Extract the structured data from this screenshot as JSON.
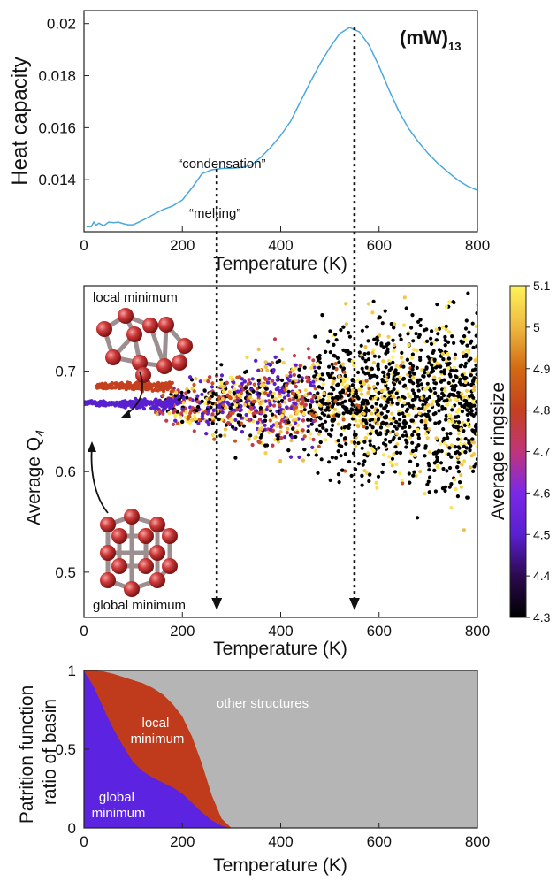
{
  "figure_label": "(mW)",
  "figure_label_sub": "13",
  "chart_data": [
    {
      "type": "line",
      "xlabel": "Temperature (K)",
      "ylabel": "Heat capacity",
      "xlim": [
        0,
        800
      ],
      "ylim": [
        0.012,
        0.0205
      ],
      "xticks": [
        0,
        200,
        400,
        600,
        800
      ],
      "yticks": [
        0.014,
        0.016,
        0.018,
        0.02
      ],
      "ytick_labels": [
        "0.014",
        "0.016",
        "0.018",
        "0.02"
      ],
      "line_color": "#4aa8e0",
      "series": [
        {
          "x": [
            5,
            15,
            20,
            25,
            30,
            40,
            50,
            60,
            70,
            80,
            90,
            100,
            120,
            140,
            160,
            180,
            200,
            220,
            240,
            260,
            280,
            300,
            320,
            340,
            360,
            380,
            400,
            420,
            440,
            460,
            480,
            500,
            520,
            540,
            560,
            580,
            600,
            620,
            640,
            660,
            680,
            700,
            720,
            740,
            760,
            780,
            800
          ],
          "y": [
            0.01219,
            0.0122,
            0.01237,
            0.01225,
            0.01233,
            0.01223,
            0.01237,
            0.01235,
            0.01237,
            0.01231,
            0.01227,
            0.01227,
            0.01245,
            0.01265,
            0.01285,
            0.01299,
            0.01322,
            0.0137,
            0.01423,
            0.01438,
            0.01443,
            0.01444,
            0.01447,
            0.01456,
            0.01487,
            0.01525,
            0.0157,
            0.01624,
            0.017,
            0.01775,
            0.01845,
            0.01908,
            0.01962,
            0.01985,
            0.01968,
            0.01916,
            0.01835,
            0.01746,
            0.01664,
            0.01597,
            0.01545,
            0.015,
            0.01462,
            0.01429,
            0.01399,
            0.01375,
            0.01359
          ]
        }
      ],
      "annotations": [
        {
          "text": "“melting”",
          "x": 270
        },
        {
          "text": "“condensation”",
          "x": 550
        }
      ]
    },
    {
      "type": "scatter",
      "xlabel": "Temperature (K)",
      "ylabel": "Average Q",
      "ylabel_sub": "4",
      "xlim": [
        0,
        800
      ],
      "ylim": [
        0.455,
        0.785
      ],
      "xticks": [
        0,
        200,
        400,
        600,
        800
      ],
      "yticks": [
        0.5,
        0.6,
        0.7
      ],
      "ytick_labels": [
        "0.5",
        "0.6",
        "0.7"
      ],
      "colorbar": {
        "label": "Average ringsize",
        "range": [
          4.3,
          5.1
        ],
        "ticks": [
          "4.3",
          "4.4",
          "4.5",
          "4.6",
          "4.7",
          "4.8",
          "4.9",
          "5",
          "5.1"
        ],
        "colors": [
          "#000000",
          "#2b0a4f",
          "#5a1fd0",
          "#7a28e8",
          "#c0357a",
          "#c5401e",
          "#d26a12",
          "#eeb840",
          "#fff35a"
        ]
      },
      "clusters": [
        {
          "name": "local minimum",
          "q4": 0.685,
          "ringsize": 4.8,
          "T_range": [
            25,
            180
          ]
        },
        {
          "name": "global minimum",
          "q4": 0.668,
          "ringsize": 4.5,
          "T_range": [
            0,
            180
          ]
        }
      ],
      "vertical_markers_K": [
        270,
        550
      ],
      "annotations": [
        {
          "text": "local minimum"
        },
        {
          "text": "global minimum"
        }
      ]
    },
    {
      "type": "area",
      "xlabel": "Temperature (K)",
      "ylabel_line1": "Patrition function",
      "ylabel_line2": "ratio of basin",
      "xlim": [
        0,
        800
      ],
      "ylim": [
        0,
        1
      ],
      "xticks": [
        0,
        200,
        400,
        600,
        800
      ],
      "yticks": [
        0,
        0.5,
        1
      ],
      "ytick_labels": [
        "0",
        "0.5",
        "1"
      ],
      "x": [
        0,
        20,
        40,
        60,
        80,
        100,
        120,
        140,
        160,
        180,
        200,
        220,
        240,
        260,
        280,
        300,
        800
      ],
      "series": [
        {
          "name": "global minimum",
          "color": "#5c23e0",
          "values": [
            1.0,
            0.9,
            0.76,
            0.63,
            0.52,
            0.42,
            0.36,
            0.32,
            0.29,
            0.26,
            0.22,
            0.16,
            0.1,
            0.05,
            0.015,
            0.0,
            0.0
          ]
        },
        {
          "name": "local minimum",
          "color": "#bf3b1c",
          "values": [
            0.0,
            0.1,
            0.235,
            0.35,
            0.44,
            0.52,
            0.56,
            0.57,
            0.56,
            0.53,
            0.49,
            0.42,
            0.31,
            0.16,
            0.045,
            0.0,
            0.0
          ]
        },
        {
          "name": "other structures",
          "color": "#b5b5b5",
          "values": [
            0.0,
            0.0,
            0.005,
            0.02,
            0.04,
            0.06,
            0.08,
            0.11,
            0.15,
            0.21,
            0.29,
            0.42,
            0.59,
            0.79,
            0.94,
            1.0,
            1.0
          ]
        }
      ],
      "area_labels": [
        {
          "lines": [
            "other structures"
          ]
        },
        {
          "lines": [
            "local",
            "minimum"
          ]
        },
        {
          "lines": [
            "global",
            "minimum"
          ]
        }
      ]
    }
  ]
}
